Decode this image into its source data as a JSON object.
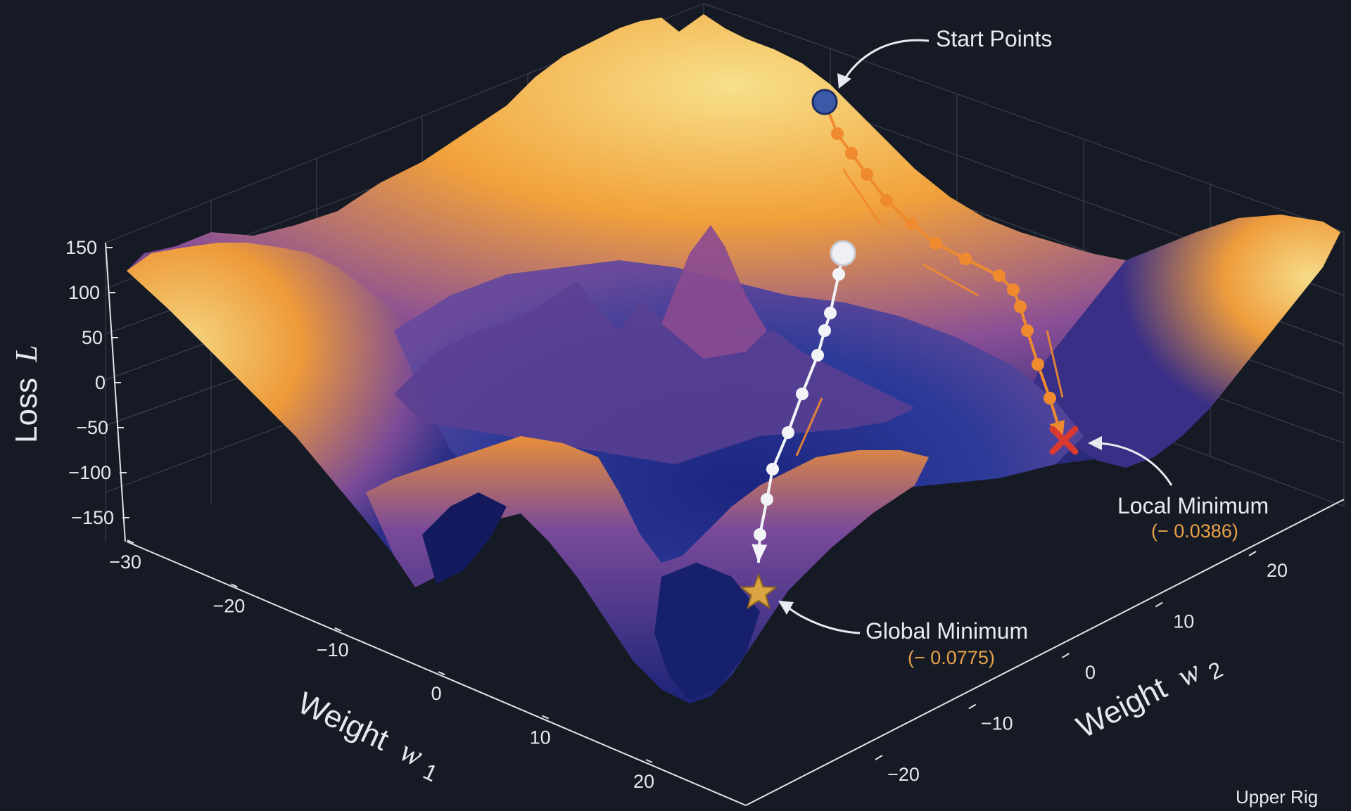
{
  "chart_data": {
    "type": "surface",
    "zlabel": "Loss",
    "zlabel_symbol": "L",
    "xlabel": "Weight",
    "xlabel_symbol": "w",
    "xlabel_sub": "1",
    "ylabel": "Weight",
    "ylabel_symbol": "w",
    "ylabel_sub": "2",
    "z_ticks": [
      "150",
      "100",
      "50",
      "0",
      "−50",
      "−100",
      "−150"
    ],
    "x_ticks": [
      "−30",
      "−20",
      "−10",
      "0",
      "10",
      "20"
    ],
    "y_ticks": [
      "−20",
      "−10",
      "0",
      "10",
      "20"
    ],
    "zlim": [
      -150,
      150
    ],
    "xlim": [
      -30,
      25
    ],
    "ylim": [
      -25,
      25
    ],
    "grid": true,
    "colors": {
      "background": "#151a24",
      "low": "#1a1f6e",
      "mid": "#5a3d8c",
      "high": "#f2a13a",
      "peak": "#f7e08a",
      "path_orange": "#f08a2e",
      "path_white": "#f2f3f7",
      "global_marker": "#d9a441",
      "local_marker": "#d83a30"
    },
    "paths": [
      {
        "color": "path_orange",
        "marker_end": "local-minimum"
      },
      {
        "color": "path_white",
        "marker_end": "global-minimum"
      }
    ],
    "annotations": {
      "start": "Start Points",
      "local": "Local Minimum",
      "local_value": "(− 0.0386)",
      "global": "Global Minimum",
      "global_value": "(− 0.0775)"
    },
    "legend_note": "Upper Rig"
  }
}
